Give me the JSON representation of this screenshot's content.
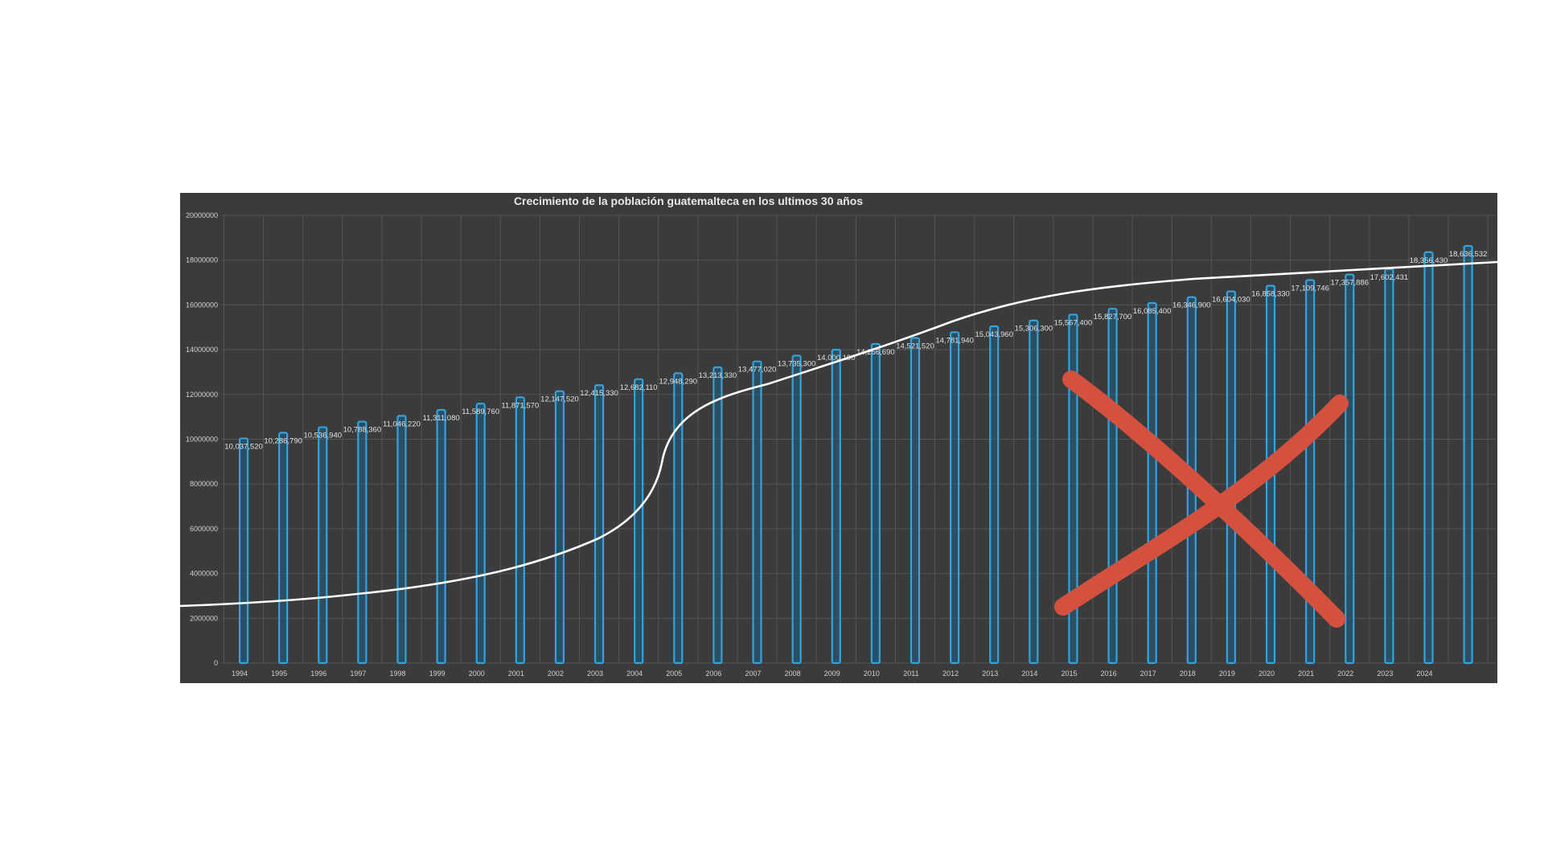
{
  "chart_data": {
    "type": "bar",
    "title": "Crecimiento de la población guatemalteca en los ultimos 30 años",
    "xlabel": "",
    "ylabel": "",
    "ylim": [
      0,
      20000000
    ],
    "y_ticks": [
      "0",
      "2000000",
      "4000000",
      "6000000",
      "8000000",
      "10000000",
      "12000000",
      "14000000",
      "16000000",
      "18000000",
      "20000000"
    ],
    "categories": [
      "1994",
      "1995",
      "1996",
      "1997",
      "1998",
      "1999",
      "2000",
      "2001",
      "2002",
      "2003",
      "2004",
      "2005",
      "2006",
      "2007",
      "2008",
      "2009",
      "2010",
      "2011",
      "2012",
      "2013",
      "2014",
      "2015",
      "2016",
      "2017",
      "2018",
      "2019",
      "2020",
      "2021",
      "2022",
      "2023",
      "2024",
      ""
    ],
    "values": [
      10037520,
      10286790,
      10536940,
      10788360,
      11046220,
      11311080,
      11589760,
      11871570,
      12147520,
      12415330,
      12682110,
      12948290,
      13213330,
      13477020,
      13735300,
      14000190,
      14256690,
      14521520,
      14781940,
      15043960,
      15306300,
      15567400,
      15827700,
      16085400,
      16346900,
      16604030,
      16858330,
      17109746,
      17357886,
      17602431,
      18356430,
      18636532
    ],
    "data_labels": [
      "10,037,520",
      "10,286,790",
      "10,536,940",
      "10,788,360",
      "11,046,220",
      "11,311,080",
      "11,589,760",
      "11,871,570",
      "12,147,520",
      "12,415,330",
      "12,682,110",
      "12,948,290",
      "13,213,330",
      "13,477,020",
      "13,735,300",
      "14,000,190",
      "14,256,690",
      "14,521,520",
      "14,781,940",
      "15,043,960",
      "15,306,300",
      "15,567,400",
      "15,827,700",
      "16,085,400",
      "16,346,900",
      "16,604,030",
      "16,858,330",
      "17,109,746",
      "17,357,886",
      "17,602,431",
      "18,356,430",
      "18,636,532"
    ],
    "grid": true,
    "legend": "none",
    "colors": {
      "background": "#3b3b3b",
      "bar_fill": "#1f5f85",
      "bar_edge": "#33a3dc",
      "grid": "#555555",
      "text": "#d0d0d0",
      "overlay_curve": "#ffffff",
      "cross_mark": "#d4513f"
    },
    "annotations": {
      "overlay_curve": "white logistic S-shaped curve drawn over the bars",
      "cross_mark": "large red hand-drawn X over the right part of the chart"
    }
  }
}
